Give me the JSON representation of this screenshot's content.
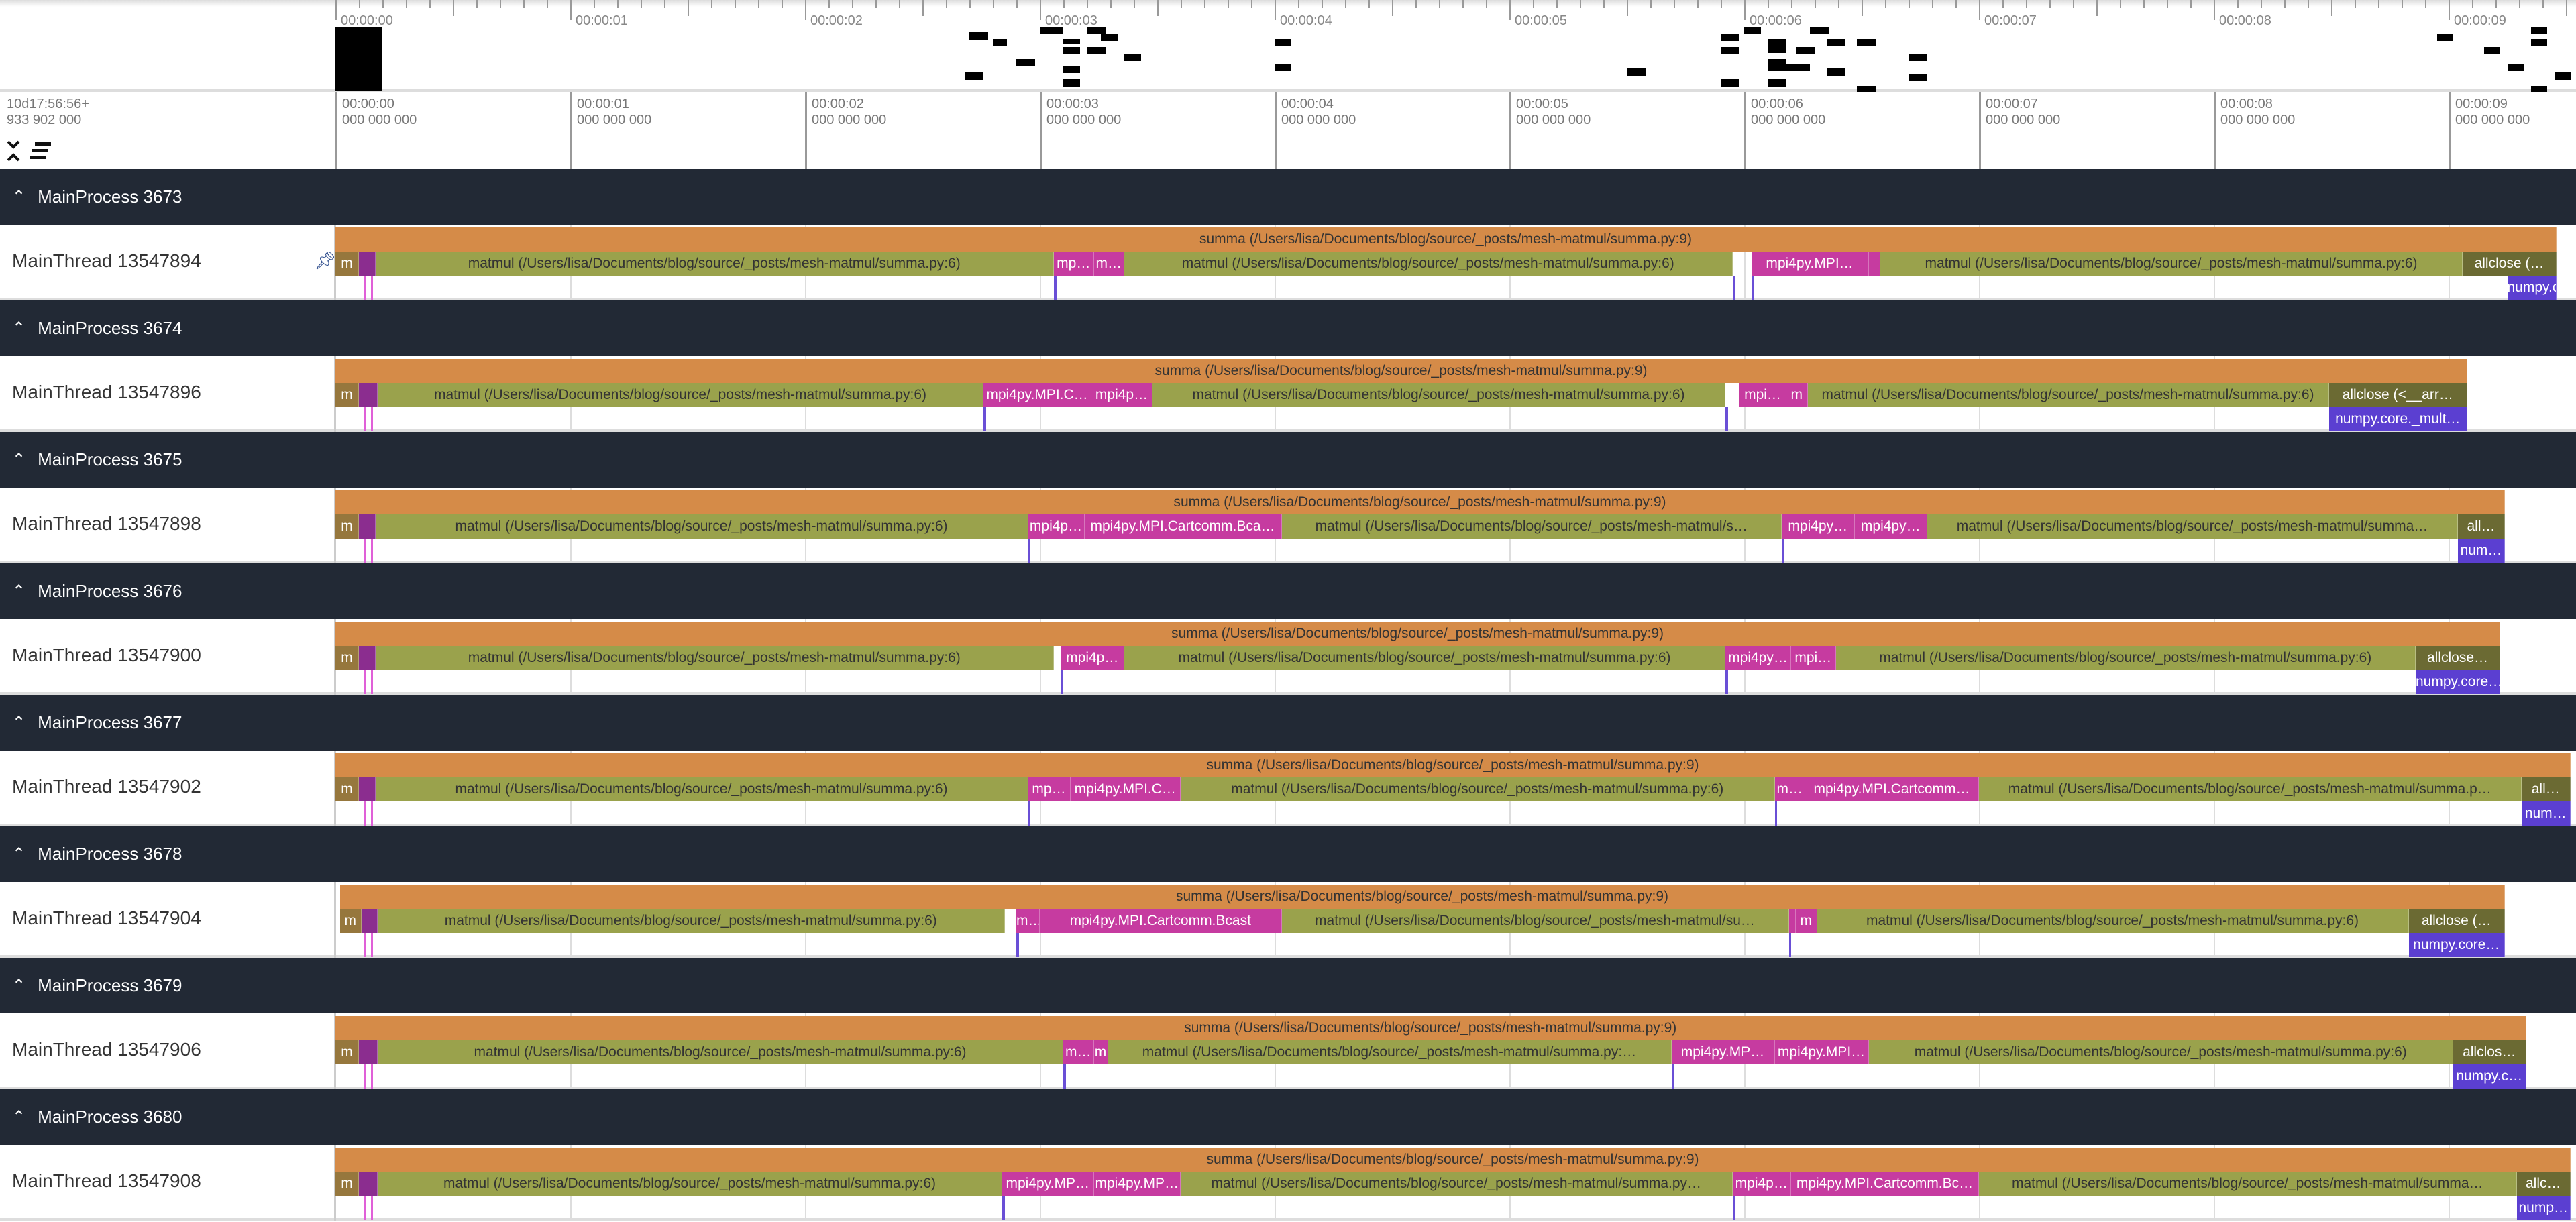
{
  "ruler": {
    "offset_line1": "10d17:56:56+",
    "offset_line2": "933 902 000",
    "ticks": [
      {
        "label": "00:00:00",
        "sub": "000 000 000",
        "t": 0
      },
      {
        "label": "00:00:01",
        "sub": "000 000 000",
        "t": 1
      },
      {
        "label": "00:00:02",
        "sub": "000 000 000",
        "t": 2
      },
      {
        "label": "00:00:03",
        "sub": "000 000 000",
        "t": 3
      },
      {
        "label": "00:00:04",
        "sub": "000 000 000",
        "t": 4
      },
      {
        "label": "00:00:05",
        "sub": "000 000 000",
        "t": 5
      },
      {
        "label": "00:00:06",
        "sub": "000 000 000",
        "t": 6
      },
      {
        "label": "00:00:07",
        "sub": "000 000 000",
        "t": 7
      },
      {
        "label": "00:00:08",
        "sub": "000 000 000",
        "t": 8
      },
      {
        "label": "00:00:09",
        "sub": "000 000 000",
        "t": 9
      }
    ]
  },
  "colors": {
    "summa": "#d58b48",
    "matmul": "#9aa24c",
    "m": "#96773d",
    "dk": "#8b2d8f",
    "mpi": "#c63ba0",
    "allclose": "#6b6a33",
    "numpy": "#5b3fd1",
    "line": "#6a4fd6",
    "pink": "#e060d8"
  },
  "processes": [
    {
      "name": "MainProcess 3673",
      "thread": "MainThread 13547894",
      "pinned": true,
      "slices": [
        {
          "l": 0,
          "s": 0,
          "e": 9.46,
          "c": "summa",
          "t": "summa (/Users/lisa/Documents/blog/source/_posts/mesh-matmul/summa.py:9)"
        },
        {
          "l": 1,
          "s": 0,
          "e": 0.1,
          "c": "m",
          "t": "m"
        },
        {
          "l": 1,
          "s": 0.1,
          "e": 0.17,
          "c": "dk",
          "t": ""
        },
        {
          "l": 1,
          "s": 0.17,
          "e": 3.06,
          "c": "matmul",
          "t": "matmul (/Users/lisa/Documents/blog/source/_posts/mesh-matmul/summa.py:6)"
        },
        {
          "l": 1,
          "s": 3.06,
          "e": 3.23,
          "c": "mpi",
          "t": "mp…"
        },
        {
          "l": 1,
          "s": 3.23,
          "e": 3.36,
          "c": "mpi",
          "t": "m…"
        },
        {
          "l": 1,
          "s": 3.36,
          "e": 5.95,
          "c": "matmul",
          "t": "matmul (/Users/lisa/Documents/blog/source/_posts/mesh-matmul/summa.py:6)"
        },
        {
          "l": 1,
          "s": 6.03,
          "e": 6.53,
          "c": "mpi",
          "t": "mpi4py.MPI…"
        },
        {
          "l": 1,
          "s": 6.53,
          "e": 6.58,
          "c": "mpi",
          "t": ""
        },
        {
          "l": 1,
          "s": 6.58,
          "e": 9.06,
          "c": "matmul",
          "t": "matmul (/Users/lisa/Documents/blog/source/_posts/mesh-matmul/summa.py:6)"
        },
        {
          "l": 1,
          "s": 9.06,
          "e": 9.46,
          "c": "allclose",
          "t": "allclose (…"
        },
        {
          "l": 2,
          "s": 9.25,
          "e": 9.46,
          "c": "numpy",
          "t": "numpy.core…"
        },
        {
          "l": 2,
          "s": 3.06,
          "e": 3.07,
          "c": "line",
          "t": ""
        },
        {
          "l": 2,
          "s": 5.95,
          "e": 5.96,
          "c": "line",
          "t": ""
        },
        {
          "l": 2,
          "s": 6.03,
          "e": 6.04,
          "c": "line",
          "t": ""
        }
      ]
    },
    {
      "name": "MainProcess 3674",
      "thread": "MainThread 13547896",
      "slices": [
        {
          "l": 0,
          "s": 0,
          "e": 9.08,
          "c": "summa",
          "t": "summa (/Users/lisa/Documents/blog/source/_posts/mesh-matmul/summa.py:9)"
        },
        {
          "l": 1,
          "s": 0,
          "e": 0.1,
          "c": "m",
          "t": "m"
        },
        {
          "l": 1,
          "s": 0.1,
          "e": 0.18,
          "c": "dk",
          "t": ""
        },
        {
          "l": 1,
          "s": 0.18,
          "e": 2.76,
          "c": "matmul",
          "t": "matmul (/Users/lisa/Documents/blog/source/_posts/mesh-matmul/summa.py:6)"
        },
        {
          "l": 1,
          "s": 2.76,
          "e": 3.22,
          "c": "mpi",
          "t": "mpi4py.MPI.C…"
        },
        {
          "l": 1,
          "s": 3.22,
          "e": 3.48,
          "c": "mpi",
          "t": "mpi4p…"
        },
        {
          "l": 1,
          "s": 3.48,
          "e": 5.92,
          "c": "matmul",
          "t": "matmul (/Users/lisa/Documents/blog/source/_posts/mesh-matmul/summa.py:6)"
        },
        {
          "l": 1,
          "s": 5.98,
          "e": 6.18,
          "c": "mpi",
          "t": "mpi…"
        },
        {
          "l": 1,
          "s": 6.18,
          "e": 6.27,
          "c": "mpi",
          "t": "m"
        },
        {
          "l": 1,
          "s": 6.27,
          "e": 8.49,
          "c": "matmul",
          "t": "matmul (/Users/lisa/Documents/blog/source/_posts/mesh-matmul/summa.py:6)"
        },
        {
          "l": 1,
          "s": 8.49,
          "e": 9.08,
          "c": "allclose",
          "t": "allclose (<__arr…"
        },
        {
          "l": 2,
          "s": 8.49,
          "e": 9.08,
          "c": "numpy",
          "t": "numpy.core._mult…"
        },
        {
          "l": 2,
          "s": 2.76,
          "e": 2.77,
          "c": "line",
          "t": ""
        },
        {
          "l": 2,
          "s": 5.92,
          "e": 5.93,
          "c": "line",
          "t": ""
        }
      ]
    },
    {
      "name": "MainProcess 3675",
      "thread": "MainThread 13547898",
      "slices": [
        {
          "l": 0,
          "s": 0,
          "e": 9.24,
          "c": "summa",
          "t": "summa (/Users/lisa/Documents/blog/source/_posts/mesh-matmul/summa.py:9)"
        },
        {
          "l": 1,
          "s": 0,
          "e": 0.1,
          "c": "m",
          "t": "m"
        },
        {
          "l": 1,
          "s": 0.1,
          "e": 0.17,
          "c": "dk",
          "t": ""
        },
        {
          "l": 1,
          "s": 0.17,
          "e": 2.95,
          "c": "matmul",
          "t": "matmul (/Users/lisa/Documents/blog/source/_posts/mesh-matmul/summa.py:6)"
        },
        {
          "l": 1,
          "s": 2.95,
          "e": 3.19,
          "c": "mpi",
          "t": "mpi4p…"
        },
        {
          "l": 1,
          "s": 3.19,
          "e": 4.03,
          "c": "mpi",
          "t": "mpi4py.MPI.Cartcomm.Bca…"
        },
        {
          "l": 1,
          "s": 4.03,
          "e": 6.16,
          "c": "matmul",
          "t": "matmul (/Users/lisa/Documents/blog/source/_posts/mesh-matmul/s…"
        },
        {
          "l": 1,
          "s": 6.16,
          "e": 6.47,
          "c": "mpi",
          "t": "mpi4py…"
        },
        {
          "l": 1,
          "s": 6.47,
          "e": 6.78,
          "c": "mpi",
          "t": "mpi4py…"
        },
        {
          "l": 1,
          "s": 6.78,
          "e": 9.04,
          "c": "matmul",
          "t": "matmul (/Users/lisa/Documents/blog/source/_posts/mesh-matmul/summa…"
        },
        {
          "l": 1,
          "s": 9.04,
          "e": 9.24,
          "c": "allclose",
          "t": "all…"
        },
        {
          "l": 2,
          "s": 9.04,
          "e": 9.24,
          "c": "numpy",
          "t": "num…"
        },
        {
          "l": 2,
          "s": 2.95,
          "e": 2.96,
          "c": "line",
          "t": ""
        },
        {
          "l": 2,
          "s": 6.16,
          "e": 6.17,
          "c": "line",
          "t": ""
        }
      ]
    },
    {
      "name": "MainProcess 3676",
      "thread": "MainThread 13547900",
      "slices": [
        {
          "l": 0,
          "s": 0,
          "e": 9.22,
          "c": "summa",
          "t": "summa (/Users/lisa/Documents/blog/source/_posts/mesh-matmul/summa.py:9)"
        },
        {
          "l": 1,
          "s": 0,
          "e": 0.1,
          "c": "m",
          "t": "m"
        },
        {
          "l": 1,
          "s": 0.1,
          "e": 0.17,
          "c": "dk",
          "t": ""
        },
        {
          "l": 1,
          "s": 0.17,
          "e": 3.06,
          "c": "matmul",
          "t": "matmul (/Users/lisa/Documents/blog/source/_posts/mesh-matmul/summa.py:6)"
        },
        {
          "l": 1,
          "s": 3.09,
          "e": 3.36,
          "c": "mpi",
          "t": "mpi4p…"
        },
        {
          "l": 1,
          "s": 3.36,
          "e": 5.92,
          "c": "matmul",
          "t": "matmul (/Users/lisa/Documents/blog/source/_posts/mesh-matmul/summa.py:6)"
        },
        {
          "l": 1,
          "s": 5.92,
          "e": 6.2,
          "c": "mpi",
          "t": "mpi4py…"
        },
        {
          "l": 1,
          "s": 6.2,
          "e": 6.39,
          "c": "mpi",
          "t": "mpi…"
        },
        {
          "l": 1,
          "s": 6.39,
          "e": 8.86,
          "c": "matmul",
          "t": "matmul (/Users/lisa/Documents/blog/source/_posts/mesh-matmul/summa.py:6)"
        },
        {
          "l": 1,
          "s": 8.86,
          "e": 9.22,
          "c": "allclose",
          "t": "allclose…"
        },
        {
          "l": 2,
          "s": 8.86,
          "e": 9.22,
          "c": "numpy",
          "t": "numpy.core…"
        },
        {
          "l": 2,
          "s": 3.09,
          "e": 3.1,
          "c": "line",
          "t": ""
        },
        {
          "l": 2,
          "s": 5.92,
          "e": 5.93,
          "c": "line",
          "t": ""
        }
      ]
    },
    {
      "name": "MainProcess 3677",
      "thread": "MainThread 13547902",
      "slices": [
        {
          "l": 0,
          "s": 0,
          "e": 9.52,
          "c": "summa",
          "t": "summa (/Users/lisa/Documents/blog/source/_posts/mesh-matmul/summa.py:9)"
        },
        {
          "l": 1,
          "s": 0,
          "e": 0.1,
          "c": "m",
          "t": "m"
        },
        {
          "l": 1,
          "s": 0.1,
          "e": 0.17,
          "c": "dk",
          "t": ""
        },
        {
          "l": 1,
          "s": 0.17,
          "e": 2.95,
          "c": "matmul",
          "t": "matmul (/Users/lisa/Documents/blog/source/_posts/mesh-matmul/summa.py:6)"
        },
        {
          "l": 1,
          "s": 2.95,
          "e": 3.13,
          "c": "mpi",
          "t": "mp…"
        },
        {
          "l": 1,
          "s": 3.13,
          "e": 3.6,
          "c": "mpi",
          "t": "mpi4py.MPI.C…"
        },
        {
          "l": 1,
          "s": 3.6,
          "e": 6.13,
          "c": "matmul",
          "t": "matmul (/Users/lisa/Documents/blog/source/_posts/mesh-matmul/summa.py:6)"
        },
        {
          "l": 1,
          "s": 6.13,
          "e": 6.26,
          "c": "mpi",
          "t": "m…"
        },
        {
          "l": 1,
          "s": 6.26,
          "e": 7.0,
          "c": "mpi",
          "t": "mpi4py.MPI.Cartcomm…"
        },
        {
          "l": 1,
          "s": 7.0,
          "e": 9.31,
          "c": "matmul",
          "t": "matmul (/Users/lisa/Documents/blog/source/_posts/mesh-matmul/summa.p…"
        },
        {
          "l": 1,
          "s": 9.31,
          "e": 9.52,
          "c": "allclose",
          "t": "all…"
        },
        {
          "l": 2,
          "s": 9.31,
          "e": 9.52,
          "c": "numpy",
          "t": "num…"
        },
        {
          "l": 2,
          "s": 2.95,
          "e": 2.96,
          "c": "line",
          "t": ""
        },
        {
          "l": 2,
          "s": 6.13,
          "e": 6.14,
          "c": "line",
          "t": ""
        }
      ]
    },
    {
      "name": "MainProcess 3678",
      "thread": "MainThread 13547904",
      "slices": [
        {
          "l": 0,
          "s": 0.02,
          "e": 9.24,
          "c": "summa",
          "t": "summa (/Users/lisa/Documents/blog/source/_posts/mesh-matmul/summa.py:9)"
        },
        {
          "l": 1,
          "s": 0.02,
          "e": 0.11,
          "c": "m",
          "t": "m"
        },
        {
          "l": 1,
          "s": 0.11,
          "e": 0.18,
          "c": "dk",
          "t": ""
        },
        {
          "l": 1,
          "s": 0.18,
          "e": 2.85,
          "c": "matmul",
          "t": "matmul (/Users/lisa/Documents/blog/source/_posts/mesh-matmul/summa.py:6)"
        },
        {
          "l": 1,
          "s": 2.9,
          "e": 3.0,
          "c": "mpi",
          "t": "m…"
        },
        {
          "l": 1,
          "s": 3.0,
          "e": 4.03,
          "c": "mpi",
          "t": "mpi4py.MPI.Cartcomm.Bcast"
        },
        {
          "l": 1,
          "s": 4.03,
          "e": 6.19,
          "c": "matmul",
          "t": "matmul (/Users/lisa/Documents/blog/source/_posts/mesh-matmul/su…"
        },
        {
          "l": 1,
          "s": 6.19,
          "e": 6.22,
          "c": "mpi",
          "t": ""
        },
        {
          "l": 1,
          "s": 6.22,
          "e": 6.31,
          "c": "mpi",
          "t": "m"
        },
        {
          "l": 1,
          "s": 6.31,
          "e": 8.83,
          "c": "matmul",
          "t": "matmul (/Users/lisa/Documents/blog/source/_posts/mesh-matmul/summa.py:6)"
        },
        {
          "l": 1,
          "s": 8.83,
          "e": 9.24,
          "c": "allclose",
          "t": "allclose (…"
        },
        {
          "l": 2,
          "s": 8.83,
          "e": 9.24,
          "c": "numpy",
          "t": "numpy.core…"
        },
        {
          "l": 2,
          "s": 2.9,
          "e": 2.91,
          "c": "line",
          "t": ""
        },
        {
          "l": 2,
          "s": 6.19,
          "e": 6.2,
          "c": "line",
          "t": ""
        }
      ]
    },
    {
      "name": "MainProcess 3679",
      "thread": "MainThread 13547906",
      "slices": [
        {
          "l": 0,
          "s": 0,
          "e": 9.33,
          "c": "summa",
          "t": "summa (/Users/lisa/Documents/blog/source/_posts/mesh-matmul/summa.py:9)"
        },
        {
          "l": 1,
          "s": 0,
          "e": 0.1,
          "c": "m",
          "t": "m"
        },
        {
          "l": 1,
          "s": 0.1,
          "e": 0.18,
          "c": "dk",
          "t": ""
        },
        {
          "l": 1,
          "s": 0.18,
          "e": 3.1,
          "c": "matmul",
          "t": "matmul (/Users/lisa/Documents/blog/source/_posts/mesh-matmul/summa.py:6)"
        },
        {
          "l": 1,
          "s": 3.1,
          "e": 3.23,
          "c": "mpi",
          "t": "m…"
        },
        {
          "l": 1,
          "s": 3.23,
          "e": 3.29,
          "c": "mpi",
          "t": "m"
        },
        {
          "l": 1,
          "s": 3.29,
          "e": 5.69,
          "c": "matmul",
          "t": "matmul (/Users/lisa/Documents/blog/source/_posts/mesh-matmul/summa.py:…"
        },
        {
          "l": 1,
          "s": 5.69,
          "e": 6.13,
          "c": "mpi",
          "t": "mpi4py.MP…"
        },
        {
          "l": 1,
          "s": 6.13,
          "e": 6.53,
          "c": "mpi",
          "t": "mpi4py.MPI…"
        },
        {
          "l": 1,
          "s": 6.53,
          "e": 9.02,
          "c": "matmul",
          "t": "matmul (/Users/lisa/Documents/blog/source/_posts/mesh-matmul/summa.py:6)"
        },
        {
          "l": 1,
          "s": 9.02,
          "e": 9.33,
          "c": "allclose",
          "t": "allclos…"
        },
        {
          "l": 2,
          "s": 9.02,
          "e": 9.33,
          "c": "numpy",
          "t": "numpy.c…"
        },
        {
          "l": 2,
          "s": 3.1,
          "e": 3.11,
          "c": "line",
          "t": ""
        },
        {
          "l": 2,
          "s": 5.69,
          "e": 5.7,
          "c": "line",
          "t": ""
        }
      ]
    },
    {
      "name": "MainProcess 3680",
      "thread": "MainThread 13547908",
      "slices": [
        {
          "l": 0,
          "s": 0,
          "e": 9.52,
          "c": "summa",
          "t": "summa (/Users/lisa/Documents/blog/source/_posts/mesh-matmul/summa.py:9)"
        },
        {
          "l": 1,
          "s": 0,
          "e": 0.1,
          "c": "m",
          "t": "m"
        },
        {
          "l": 1,
          "s": 0.1,
          "e": 0.18,
          "c": "dk",
          "t": ""
        },
        {
          "l": 1,
          "s": 0.18,
          "e": 2.84,
          "c": "matmul",
          "t": "matmul (/Users/lisa/Documents/blog/source/_posts/mesh-matmul/summa.py:6)"
        },
        {
          "l": 1,
          "s": 2.84,
          "e": 3.23,
          "c": "mpi",
          "t": "mpi4py.MP…"
        },
        {
          "l": 1,
          "s": 3.23,
          "e": 3.6,
          "c": "mpi",
          "t": "mpi4py.MP…"
        },
        {
          "l": 1,
          "s": 3.6,
          "e": 5.95,
          "c": "matmul",
          "t": "matmul (/Users/lisa/Documents/blog/source/_posts/mesh-matmul/summa.py…"
        },
        {
          "l": 1,
          "s": 5.95,
          "e": 6.2,
          "c": "mpi",
          "t": "mpi4p…"
        },
        {
          "l": 1,
          "s": 6.2,
          "e": 7.0,
          "c": "mpi",
          "t": "mpi4py.MPI.Cartcomm.Bc…"
        },
        {
          "l": 1,
          "s": 7.0,
          "e": 9.29,
          "c": "matmul",
          "t": "matmul (/Users/lisa/Documents/blog/source/_posts/mesh-matmul/summa…"
        },
        {
          "l": 1,
          "s": 9.29,
          "e": 9.52,
          "c": "allclose",
          "t": "allc…"
        },
        {
          "l": 2,
          "s": 9.29,
          "e": 9.52,
          "c": "numpy",
          "t": "nump…"
        },
        {
          "l": 2,
          "s": 2.84,
          "e": 2.85,
          "c": "line",
          "t": ""
        },
        {
          "l": 2,
          "s": 5.95,
          "e": 5.96,
          "c": "line",
          "t": ""
        }
      ]
    }
  ]
}
